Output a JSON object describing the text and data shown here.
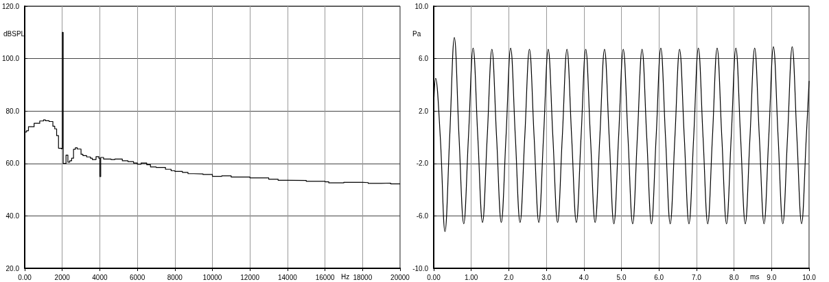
{
  "chart_data": [
    {
      "type": "step",
      "xlabel": "Hz",
      "ylabel": "dBSPL",
      "xlim": [
        0,
        20000
      ],
      "ylim": [
        20,
        120
      ],
      "grid": true,
      "marker": "none",
      "line_style": "solid",
      "xticks": [
        {
          "value": 0,
          "label": "0.00"
        },
        2000,
        4000,
        6000,
        8000,
        10000,
        12000,
        14000,
        16000,
        18000,
        20000
      ],
      "yticks": [
        {
          "value": 20,
          "label": "20.0"
        },
        {
          "value": 40,
          "label": "40.0"
        },
        {
          "value": 60,
          "label": "60.0"
        },
        {
          "value": 80,
          "label": "80.0"
        },
        {
          "value": 100,
          "label": "100.0"
        },
        {
          "value": 120,
          "label": "120.0"
        }
      ],
      "series": [
        {
          "color": "#000000",
          "x": [
            0,
            100,
            200,
            500,
            800,
            1000,
            1100,
            1300,
            1500,
            1600,
            1700,
            1800,
            1950,
            2000,
            2050,
            2200,
            2300,
            2400,
            2500,
            2600,
            2700,
            2800,
            3000,
            3100,
            3300,
            3500,
            3600,
            3800,
            3950,
            4000,
            4050,
            4200,
            4600,
            4800,
            5200,
            5500,
            5800,
            6000,
            6200,
            6500,
            6700,
            7000,
            7500,
            7800,
            8000,
            8400,
            8700,
            9000,
            9500,
            10000,
            10500,
            11000,
            12000,
            12500,
            13000,
            13500,
            14000,
            15000,
            16000,
            16200,
            17000,
            18000,
            18300,
            19000,
            19500,
            20000
          ],
          "values": [
            72,
            72.5,
            74,
            75.3,
            76.2,
            76.6,
            76.3,
            76,
            74.2,
            73.2,
            70.6,
            65.8,
            65.6,
            110,
            60,
            63.2,
            60.5,
            61,
            62,
            65.4,
            66,
            65.5,
            63.5,
            63,
            62.5,
            62,
            61.5,
            62.6,
            62,
            55,
            62.3,
            61.7,
            61.5,
            61.7,
            61,
            60.7,
            60.2,
            59.7,
            60.2,
            59.5,
            58.7,
            58.5,
            57.8,
            57.2,
            57,
            56.6,
            56.1,
            56,
            55.8,
            55.1,
            55.3,
            54.8,
            54.5,
            54.5,
            54,
            53.6,
            53.5,
            53.2,
            53,
            52.6,
            52.8,
            52.7,
            52.4,
            52.5,
            52.2,
            52.2
          ]
        }
      ]
    },
    {
      "type": "line",
      "xlabel": "ms",
      "ylabel": "Pa",
      "xlim": [
        0,
        10
      ],
      "ylim": [
        -10,
        10
      ],
      "grid": true,
      "marker": "none",
      "line_style": "solid",
      "xticks": [
        {
          "value": 0,
          "label": "0.00"
        },
        {
          "value": 1,
          "label": "1.00"
        },
        {
          "value": 2,
          "label": "2.0"
        },
        {
          "value": 3,
          "label": "3.0"
        },
        {
          "value": 4,
          "label": "4.0"
        },
        {
          "value": 5,
          "label": "5.0"
        },
        {
          "value": 6,
          "label": "6.0"
        },
        {
          "value": 7,
          "label": "7.0"
        },
        {
          "value": 8,
          "label": "8.0"
        },
        {
          "value": 9,
          "label": "9.0"
        },
        {
          "value": 10,
          "label": "10.0"
        }
      ],
      "yticks": [
        {
          "value": -10,
          "label": "-10.0"
        },
        {
          "value": -6,
          "label": "-6.0"
        },
        {
          "value": -2,
          "label": "-2.0"
        },
        {
          "value": 2,
          "label": "2.0"
        },
        {
          "value": 6,
          "label": "6.0"
        },
        {
          "value": 10,
          "label": "10.0"
        }
      ],
      "series": [
        {
          "color": "#000000",
          "x": [
            0,
            0.05,
            0.175,
            0.3,
            0.425,
            0.55,
            0.675,
            0.8,
            0.925,
            1.05,
            1.175,
            1.3,
            1.425,
            1.55,
            1.675,
            1.8,
            1.925,
            2.05,
            2.175,
            2.3,
            2.425,
            2.55,
            2.675,
            2.8,
            2.925,
            3.05,
            3.175,
            3.3,
            3.425,
            3.55,
            3.675,
            3.8,
            3.925,
            4.05,
            4.175,
            4.3,
            4.425,
            4.55,
            4.675,
            4.8,
            4.925,
            5.05,
            5.175,
            5.3,
            5.425,
            5.55,
            5.675,
            5.8,
            5.925,
            6.05,
            6.175,
            6.3,
            6.425,
            6.55,
            6.675,
            6.8,
            6.925,
            7.05,
            7.175,
            7.3,
            7.425,
            7.55,
            7.675,
            7.8,
            7.925,
            8.05,
            8.175,
            8.3,
            8.425,
            8.55,
            8.675,
            8.8,
            8.925,
            9.05,
            9.175,
            9.3,
            9.425,
            9.55,
            9.675,
            9.8,
            9.925,
            10
          ],
          "values": [
            2.5,
            4.5,
            0,
            -7.2,
            0,
            7.6,
            0,
            -6.6,
            0,
            6.8,
            0,
            -6.5,
            0,
            6.7,
            0,
            -6.5,
            0,
            6.8,
            0,
            -6.5,
            0,
            6.7,
            0,
            -6.5,
            0,
            6.7,
            0,
            -6.5,
            0,
            6.7,
            0,
            -6.5,
            0,
            6.7,
            0,
            -6.5,
            0,
            6.7,
            0,
            -6.6,
            0,
            6.7,
            0,
            -6.6,
            0,
            6.7,
            0,
            -6.6,
            0,
            6.8,
            0,
            -6.6,
            0,
            6.7,
            0,
            -6.6,
            0,
            6.8,
            0,
            -6.6,
            0,
            6.8,
            0,
            -6.6,
            0,
            6.8,
            0,
            -6.6,
            0,
            6.8,
            0,
            -6.6,
            0,
            6.9,
            0,
            -6.6,
            0,
            6.9,
            0,
            -6.6,
            0,
            4.3
          ]
        }
      ]
    }
  ]
}
